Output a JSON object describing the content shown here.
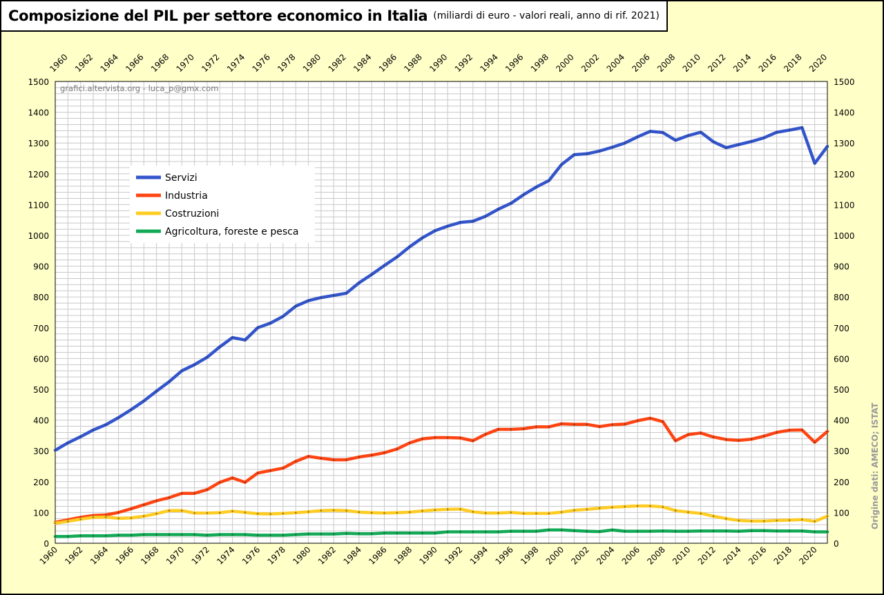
{
  "header": {
    "title": "Composizione del PIL per settore economico in Italia",
    "subtitle": "(miliardi di euro - valori reali, anno di rif. 2021)"
  },
  "watermark": "grafici.altervista.org - luca_p@gmx.com",
  "source": "Origine dati: AMECO; ISTAT",
  "chart_data": {
    "type": "line",
    "x_start": 1960,
    "x_end": 2021,
    "xlim": [
      1960,
      2021
    ],
    "ylim": [
      0,
      1500
    ],
    "y_step": 100,
    "x_label_step": 2,
    "grid": true,
    "legend_position": "upper-left",
    "x_ticks_bottom": [
      "1960",
      "1962",
      "1964",
      "1966",
      "1968",
      "1970",
      "1972",
      "1974",
      "1976",
      "1978",
      "1980",
      "1982",
      "1984",
      "1986",
      "1988",
      "1990",
      "1992",
      "1994",
      "1996",
      "1998",
      "2000",
      "2002",
      "2004",
      "2006",
      "2008",
      "2010",
      "2012",
      "2014",
      "2016",
      "2018",
      "2020"
    ],
    "x_ticks_top": [
      "1960",
      "1962",
      "1964",
      "1966",
      "1968",
      "1970",
      "1972",
      "1974",
      "1976",
      "1978",
      "1980",
      "1982",
      "1984",
      "1986",
      "1988",
      "1990",
      "1992",
      "1994",
      "1996",
      "1998",
      "2000",
      "2002",
      "2004",
      "2006",
      "2008",
      "2010",
      "2012",
      "2014",
      "2016",
      "2018",
      "2020"
    ],
    "y_ticks": [
      "0",
      "100",
      "200",
      "300",
      "400",
      "500",
      "600",
      "700",
      "800",
      "900",
      "1000",
      "1100",
      "1200",
      "1300",
      "1400",
      "1500"
    ],
    "series": [
      {
        "name": "Servizi",
        "color": "#3355cc",
        "values": [
          302,
          326,
          346,
          368,
          385,
          408,
          434,
          462,
          494,
          525,
          560,
          580,
          604,
          638,
          668,
          660,
          700,
          715,
          737,
          770,
          788,
          798,
          805,
          812,
          846,
          873,
          902,
          930,
          963,
          992,
          1015,
          1030,
          1042,
          1046,
          1062,
          1085,
          1104,
          1132,
          1157,
          1178,
          1230,
          1262,
          1265,
          1274,
          1286,
          1300,
          1320,
          1338,
          1334,
          1309,
          1324,
          1335,
          1304,
          1285,
          1295,
          1305,
          1317,
          1335,
          1342,
          1350,
          1234,
          1289
        ]
      },
      {
        "name": "Industria",
        "color": "#ff4411",
        "values": [
          68,
          76,
          84,
          90,
          92,
          100,
          112,
          125,
          138,
          148,
          162,
          162,
          174,
          198,
          212,
          198,
          228,
          236,
          244,
          266,
          282,
          276,
          271,
          271,
          280,
          286,
          294,
          306,
          326,
          339,
          343,
          343,
          342,
          333,
          354,
          370,
          370,
          372,
          378,
          378,
          388,
          386,
          386,
          379,
          385,
          387,
          398,
          406,
          395,
          333,
          353,
          358,
          345,
          337,
          334,
          338,
          348,
          360,
          367,
          368,
          328,
          363
        ]
      },
      {
        "name": "Costruzioni",
        "color": "#ffcc22",
        "values": [
          65,
          71,
          78,
          84,
          85,
          81,
          82,
          88,
          96,
          106,
          106,
          98,
          98,
          99,
          104,
          100,
          96,
          95,
          97,
          99,
          102,
          106,
          107,
          106,
          101,
          99,
          98,
          99,
          101,
          105,
          108,
          110,
          111,
          102,
          98,
          98,
          100,
          97,
          97,
          97,
          101,
          107,
          110,
          114,
          117,
          119,
          121,
          121,
          118,
          106,
          101,
          97,
          88,
          80,
          74,
          72,
          72,
          74,
          75,
          77,
          71,
          88
        ]
      },
      {
        "name": "Agricoltura, foreste e pesca",
        "color": "#11aa55",
        "values": [
          22,
          22,
          24,
          24,
          24,
          26,
          26,
          28,
          28,
          28,
          28,
          28,
          26,
          28,
          28,
          28,
          26,
          26,
          26,
          28,
          30,
          30,
          30,
          32,
          31,
          31,
          33,
          33,
          33,
          33,
          33,
          37,
          37,
          37,
          37,
          37,
          39,
          39,
          39,
          43,
          43,
          41,
          39,
          38,
          43,
          39,
          39,
          39,
          40,
          39,
          39,
          40,
          40,
          40,
          39,
          41,
          41,
          40,
          40,
          40,
          37,
          37
        ]
      }
    ]
  }
}
